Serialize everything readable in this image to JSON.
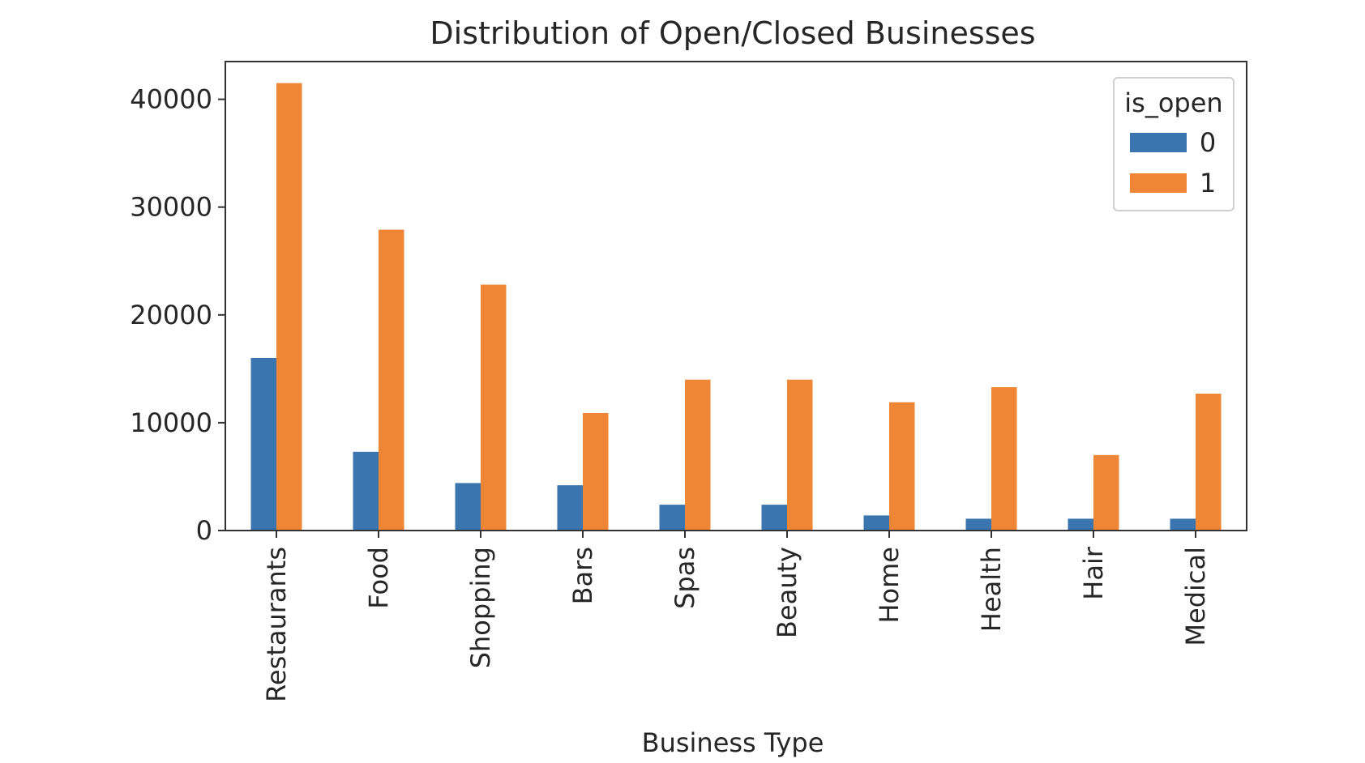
{
  "chart_data": {
    "type": "bar",
    "title": "Distribution of Open/Closed Businesses",
    "xlabel": "Business Type",
    "ylabel": "",
    "categories": [
      "Restaurants",
      "Food",
      "Shopping",
      "Bars",
      "Spas",
      "Beauty",
      "Home",
      "Health",
      "Hair",
      "Medical"
    ],
    "series": [
      {
        "name": "0",
        "color": "#3a75af",
        "values": [
          16000,
          7300,
          4400,
          4200,
          2400,
          2400,
          1400,
          1100,
          1100,
          1100
        ]
      },
      {
        "name": "1",
        "color": "#ef8636",
        "values": [
          41500,
          27900,
          22800,
          10900,
          14000,
          14000,
          11900,
          13300,
          7000,
          12700
        ]
      }
    ],
    "ylim": [
      0,
      43500
    ],
    "yticks": [
      0,
      10000,
      20000,
      30000,
      40000
    ],
    "legend": {
      "title": "is_open",
      "position": "top-right"
    },
    "grid": false
  }
}
